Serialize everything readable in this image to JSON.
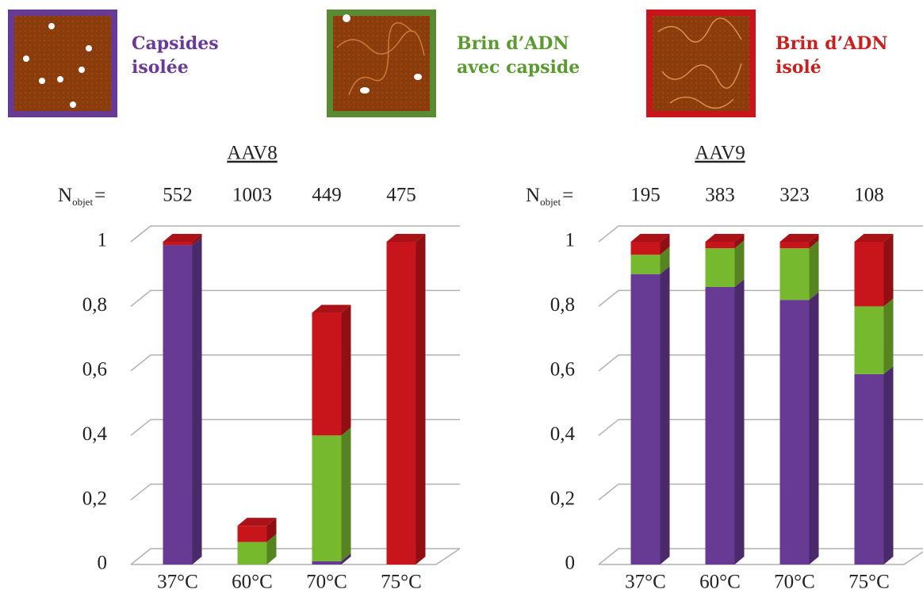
{
  "chart_data": [
    {
      "type": "bar",
      "stacked": true,
      "title": "AAV8",
      "title_color": "#3b4fa0",
      "counts_label": {
        "symbol": "N",
        "subscript": "objet",
        "sign": "="
      },
      "counts": [
        552,
        1003,
        449,
        475
      ],
      "categories": [
        "37°C",
        "60°C",
        "70°C",
        "75°C"
      ],
      "series": [
        {
          "name": "Capsides isolée",
          "color": "#673a93",
          "values": [
            0.99,
            0,
            0.01,
            0
          ]
        },
        {
          "name": "Brin d’ADN avec capside",
          "color": "#76b82e",
          "values": [
            0,
            0.07,
            0.39,
            0
          ]
        },
        {
          "name": "Brin d’ADN isolé",
          "color": "#c8151b",
          "values": [
            0.01,
            0.05,
            0.38,
            1
          ]
        }
      ],
      "ylim": [
        0,
        1
      ],
      "yticks": [
        0,
        {
          "value": 0.2,
          "label": "0,2"
        },
        {
          "value": 0.4,
          "label": "0,4"
        },
        {
          "value": 0.6,
          "label": "0,6"
        },
        {
          "value": 0.8,
          "label": "0,8"
        },
        1
      ],
      "grid": true
    },
    {
      "type": "bar",
      "stacked": true,
      "title": "AAV9",
      "title_color": "#e0323a",
      "counts_label": {
        "symbol": "N",
        "subscript": "objet",
        "sign": "="
      },
      "counts": [
        195,
        383,
        323,
        108
      ],
      "categories": [
        "37°C",
        "60°C",
        "70°C",
        "75°C"
      ],
      "series": [
        {
          "name": "Capsides isolée",
          "color": "#673a93",
          "values": [
            0.9,
            0.86,
            0.82,
            0.59
          ]
        },
        {
          "name": "Brin d’ADN avec capside",
          "color": "#76b82e",
          "values": [
            0.06,
            0.12,
            0.16,
            0.21
          ]
        },
        {
          "name": "Brin d’ADN isolé",
          "color": "#c8151b",
          "values": [
            0.04,
            0.02,
            0.02,
            0.2
          ]
        }
      ],
      "ylim": [
        0,
        1
      ],
      "yticks": [
        0,
        {
          "value": 0.2,
          "label": "0,2"
        },
        {
          "value": 0.4,
          "label": "0,4"
        },
        {
          "value": 0.6,
          "label": "0,6"
        },
        {
          "value": 0.8,
          "label": "0,8"
        },
        1
      ],
      "grid": true
    }
  ]
}
